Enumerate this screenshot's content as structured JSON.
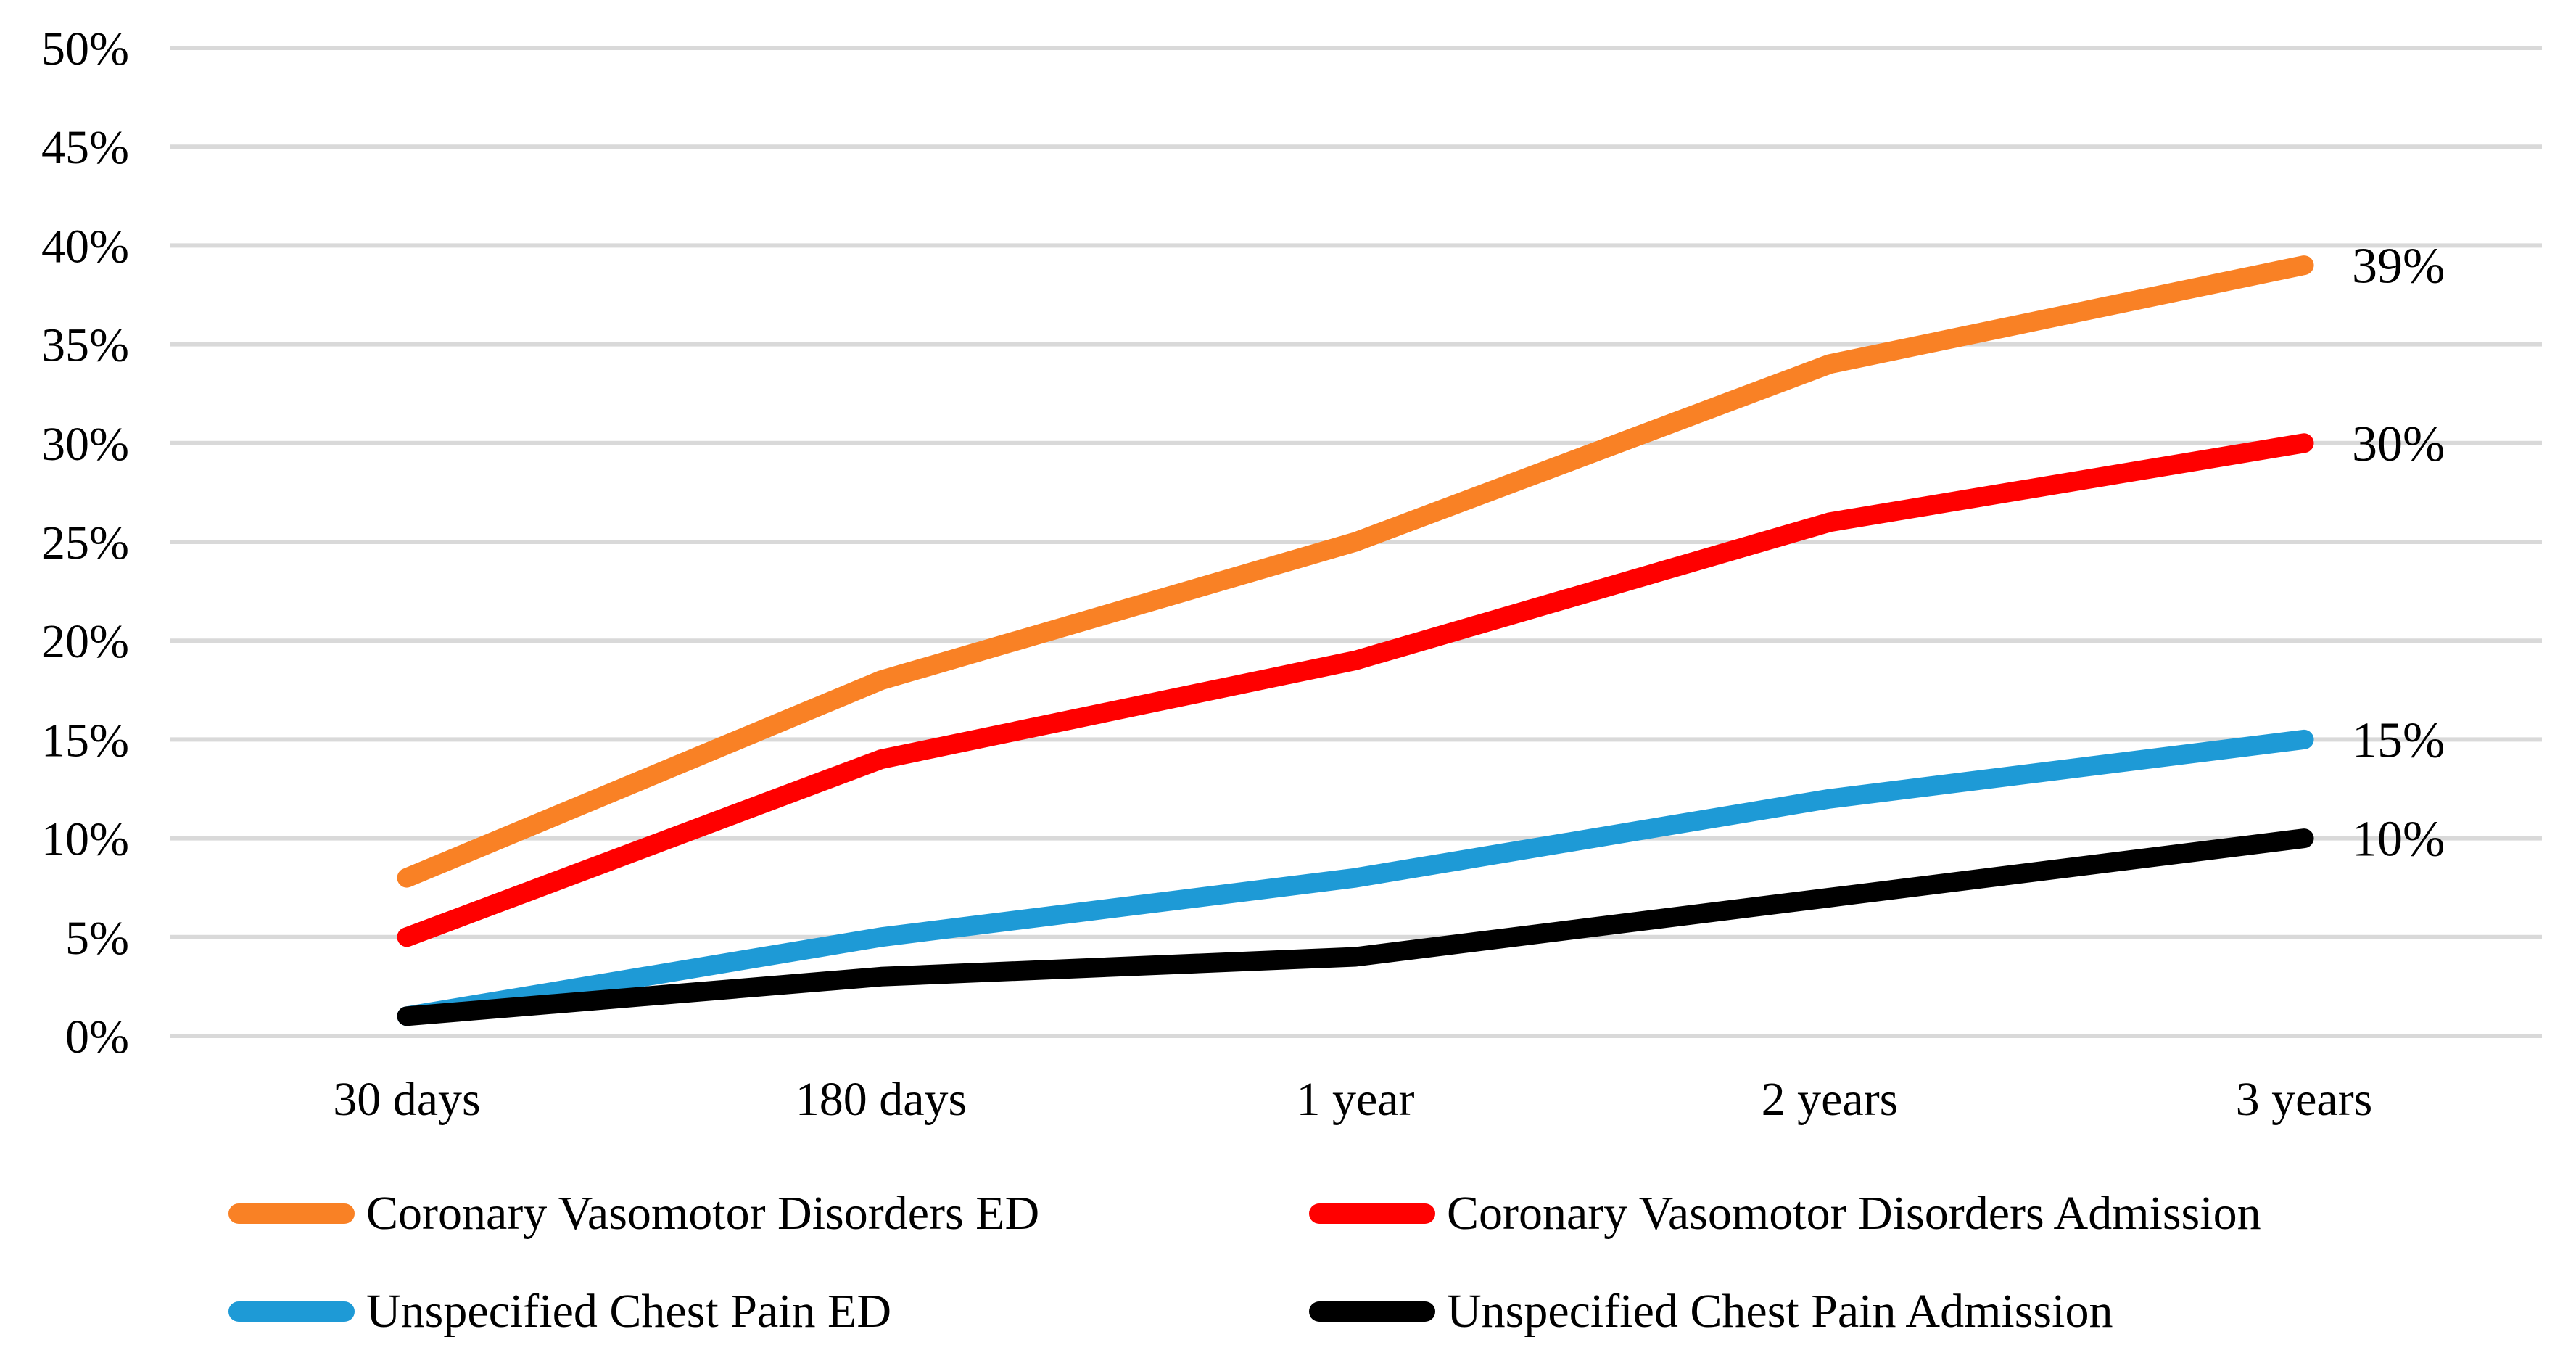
{
  "chart_data": {
    "type": "line",
    "title": "",
    "xlabel": "",
    "ylabel": "",
    "categories": [
      "30 days",
      "180 days",
      "1 year",
      "2 years",
      "3 years"
    ],
    "series": [
      {
        "name": "Coronary Vasomotor Disorders ED",
        "color": "#F98125",
        "values": [
          8,
          18,
          25,
          34,
          39
        ],
        "end_label": "39%"
      },
      {
        "name": "Coronary Vasomotor Disorders Admission",
        "color": "#FF0000",
        "values": [
          5,
          14,
          19,
          26,
          30
        ],
        "end_label": "30%"
      },
      {
        "name": "Unspecified Chest Pain ED",
        "color": "#1E9AD6",
        "values": [
          1,
          5,
          8,
          12,
          15
        ],
        "end_label": "15%"
      },
      {
        "name": "Unspecified Chest Pain Admission",
        "color": "#000000",
        "values": [
          1,
          3,
          4,
          7,
          10
        ],
        "end_label": "10%"
      }
    ],
    "y_ticks": [
      "0%",
      "5%",
      "10%",
      "15%",
      "20%",
      "25%",
      "30%",
      "35%",
      "40%",
      "45%",
      "50%"
    ],
    "ylim": [
      0,
      50
    ],
    "y_tick_step": 5,
    "grid": true,
    "gridline_color": "#D9D9D9",
    "background_color": "#FFFFFF",
    "legend_position": "bottom"
  }
}
